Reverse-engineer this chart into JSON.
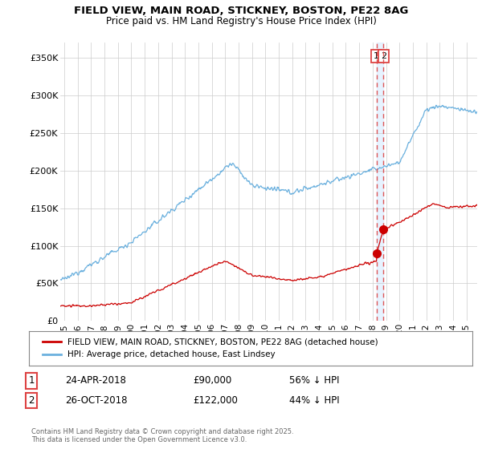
{
  "title": "FIELD VIEW, MAIN ROAD, STICKNEY, BOSTON, PE22 8AG",
  "subtitle": "Price paid vs. HM Land Registry's House Price Index (HPI)",
  "ylabel_ticks": [
    "£0",
    "£50K",
    "£100K",
    "£150K",
    "£200K",
    "£250K",
    "£300K",
    "£350K"
  ],
  "ytick_vals": [
    0,
    50000,
    100000,
    150000,
    200000,
    250000,
    300000,
    350000
  ],
  "ylim": [
    0,
    370000
  ],
  "xlim_start": 1994.7,
  "xlim_end": 2025.8,
  "hpi_color": "#6ab0de",
  "price_color": "#cc0000",
  "vline_color": "#dd4444",
  "shade_color": "#ddeeff",
  "vline_x1": 2018.29,
  "vline_x2": 2018.81,
  "marker1_x": 2018.29,
  "marker1_y": 90000,
  "marker2_x": 2018.81,
  "marker2_y": 122000,
  "legend_line1": "FIELD VIEW, MAIN ROAD, STICKNEY, BOSTON, PE22 8AG (detached house)",
  "legend_line2": "HPI: Average price, detached house, East Lindsey",
  "table_row1": [
    "1",
    "24-APR-2018",
    "£90,000",
    "56% ↓ HPI"
  ],
  "table_row2": [
    "2",
    "26-OCT-2018",
    "£122,000",
    "44% ↓ HPI"
  ],
  "footer": "Contains HM Land Registry data © Crown copyright and database right 2025.\nThis data is licensed under the Open Government Licence v3.0.",
  "background_color": "#ffffff",
  "grid_color": "#cccccc"
}
